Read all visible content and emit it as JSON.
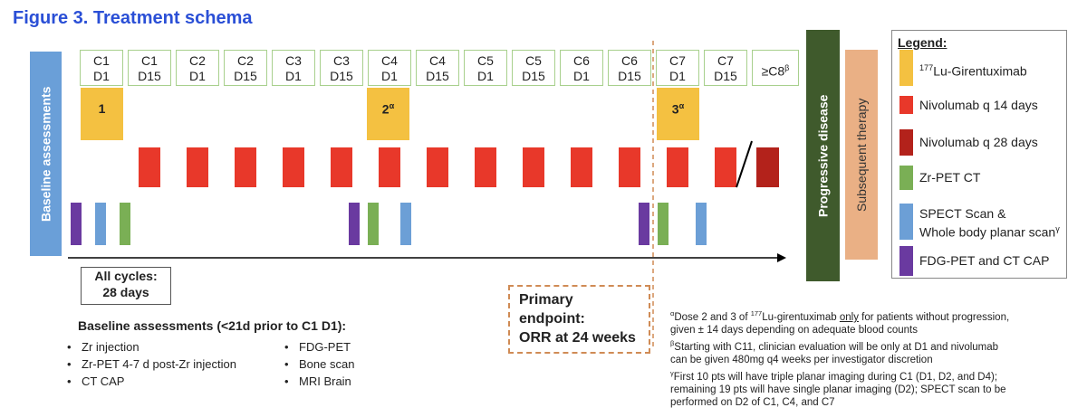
{
  "title": "Figure 3. Treatment schema",
  "baseline_bar": "Baseline assessments",
  "cycles": [
    [
      [
        "C1"
      ],
      [
        "D1"
      ]
    ],
    [
      [
        "C1"
      ],
      [
        "D15"
      ]
    ],
    [
      [
        "C2"
      ],
      [
        "D1"
      ]
    ],
    [
      [
        "C2"
      ],
      [
        "D15"
      ]
    ],
    [
      [
        "C3"
      ],
      [
        "D1"
      ]
    ],
    [
      [
        "C3"
      ],
      [
        "D15"
      ]
    ],
    [
      [
        "C4"
      ],
      [
        "D1"
      ]
    ],
    [
      [
        "C4"
      ],
      [
        "D15"
      ]
    ],
    [
      [
        "C5"
      ],
      [
        "D1"
      ]
    ],
    [
      [
        "C5"
      ],
      [
        "D15"
      ]
    ],
    [
      [
        "C6"
      ],
      [
        "D1"
      ]
    ],
    [
      [
        "C6"
      ],
      [
        "D15"
      ]
    ],
    [
      [
        "C7"
      ],
      [
        "D1"
      ]
    ],
    [
      [
        "C7"
      ],
      [
        "D15"
      ]
    ],
    [
      [
        "≥C8",
        {
          "sup": "β"
        }
      ]
    ]
  ],
  "doses": [
    [
      [
        "1"
      ]
    ],
    [
      [
        "2",
        {
          "sup": "α"
        }
      ]
    ],
    [
      [
        "3",
        {
          "sup": "α"
        }
      ]
    ]
  ],
  "progressive": "Progressive disease",
  "subsequent": "Subsequent therapy",
  "legend": {
    "title": "Legend:",
    "items": [
      {
        "color": "#f4c141",
        "lines": [
          [
            {
              "sup": "177"
            },
            "Lu-Girentuximab"
          ]
        ]
      },
      {
        "color": "#e8382a",
        "lines": [
          [
            "Nivolumab q 14 days"
          ]
        ]
      },
      {
        "color": "#b3221b",
        "lines": [
          [
            "Nivolumab q 28 days"
          ]
        ]
      },
      {
        "color": "#7aaf55",
        "lines": [
          [
            "Zr-PET CT"
          ]
        ]
      },
      {
        "color": "#6c9fd6",
        "lines": [
          [
            "SPECT Scan &"
          ],
          [
            "Whole body planar scan",
            {
              "sup": "γ"
            }
          ]
        ]
      },
      {
        "color": "#6a3aa0",
        "lines": [
          [
            "FDG-PET and CT CAP"
          ]
        ]
      }
    ]
  },
  "all_cycles": [
    [
      "All cycles:"
    ],
    [
      "28 days"
    ]
  ],
  "endpoint": [
    [
      "Primary"
    ],
    [
      "endpoint:"
    ],
    [
      "ORR at 24 weeks"
    ]
  ],
  "baseline": {
    "heading": "Baseline assessments (<21d prior to C1 D1):",
    "col1": [
      "Zr injection",
      "Zr-PET 4-7 d post-Zr injection",
      "CT CAP"
    ],
    "col2": [
      "FDG-PET",
      "Bone scan",
      "MRI Brain"
    ]
  },
  "footnotes": [
    [
      [
        {
          "sup": "α"
        },
        "Dose 2 and 3 of ",
        {
          "sup": "177"
        },
        "Lu-girentuximab ",
        {
          "u": "only"
        },
        " for patients without progression,"
      ],
      [
        "given ± 14 days depending on adequate blood counts"
      ]
    ],
    [
      [
        {
          "sup": "β"
        },
        "Starting with C11, clinician evaluation will be only at D1 and nivolumab"
      ],
      [
        "can be given 480mg q4 weeks per investigator discretion"
      ]
    ],
    [
      [
        {
          "sup": "γ"
        },
        "First 10 pts will have triple planar imaging during C1 (D1, D2, and D4);"
      ],
      [
        "remaining 19 pts will have single planar imaging (D2); SPECT scan to be"
      ],
      [
        "performed on D2 of C1, C4, and C7"
      ]
    ]
  ]
}
